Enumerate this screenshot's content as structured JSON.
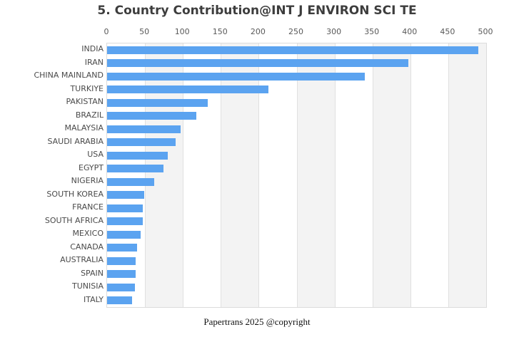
{
  "title": "5. Country Contribution@INT J ENVIRON SCI TE",
  "footer": "Papertrans 2025 @copyright",
  "colors": {
    "bar": "#5ba3f0",
    "band_alt": "#f3f3f3",
    "gridline": "#e0e0e0",
    "title_text": "#3d3d3d",
    "axis_text": "#595959",
    "label_text": "#4a4a4a"
  },
  "chart_data": {
    "type": "bar",
    "orientation": "horizontal",
    "title": "5. Country Contribution@INT J ENVIRON SCI TE",
    "categories": [
      "INDIA",
      "IRAN",
      "CHINA MAINLAND",
      "TURKIYE",
      "PAKISTAN",
      "BRAZIL",
      "MALAYSIA",
      "SAUDI ARABIA",
      "USA",
      "EGYPT",
      "NIGERIA",
      "SOUTH KOREA",
      "FRANCE",
      "SOUTH AFRICA",
      "MEXICO",
      "CANADA",
      "AUSTRALIA",
      "SPAIN",
      "TUNISIA",
      "ITALY"
    ],
    "values": [
      490,
      397,
      340,
      213,
      133,
      118,
      97,
      90,
      80,
      74,
      62,
      49,
      47,
      47,
      44,
      40,
      38,
      38,
      37,
      33
    ],
    "xlabel": "",
    "ylabel": "",
    "xlim": [
      0,
      500
    ],
    "x_ticks": [
      0,
      50,
      100,
      150,
      200,
      250,
      300,
      350,
      400,
      450,
      500
    ],
    "axis_position": "top",
    "grid": true,
    "split_area_bands": true,
    "legend": false
  }
}
